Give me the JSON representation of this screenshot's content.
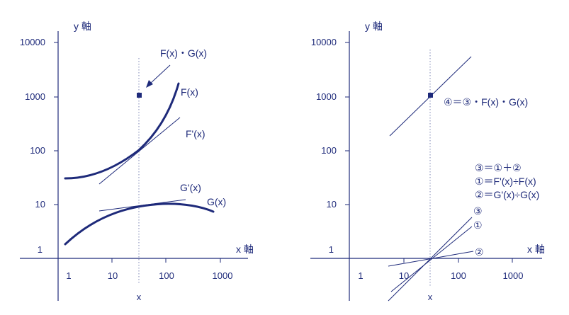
{
  "left": {
    "y_axis_label": "y 軸",
    "x_axis_label": "x 軸",
    "y_ticks": [
      "10000",
      "1000",
      "100",
      "10",
      "1"
    ],
    "x_ticks": [
      "1",
      "10",
      "100",
      "1000"
    ],
    "x_marker": "x",
    "product_label": "F(x)・G(x)",
    "f_label": "F(x)",
    "fprime_label": "F'(x)",
    "gprime_label": "G'(x)",
    "g_label": "G(x)"
  },
  "right": {
    "y_axis_label": "y 軸",
    "x_axis_label": "x 軸",
    "y_ticks": [
      "10000",
      "1000",
      "100",
      "10",
      "1"
    ],
    "x_ticks": [
      "1",
      "10",
      "100",
      "1000"
    ],
    "x_marker": "x",
    "line4_label": "④＝③・F(x)・G(x)",
    "eq3": "③＝①＋②",
    "eq1": "①＝F'(x)÷F(x)",
    "eq2": "②＝G'(x)÷G(x)",
    "line3_label": "③",
    "line1_label": "①",
    "line2_label": "②"
  },
  "colors": {
    "ink": "#1e2a7a",
    "dotted": "#7d86b5"
  }
}
